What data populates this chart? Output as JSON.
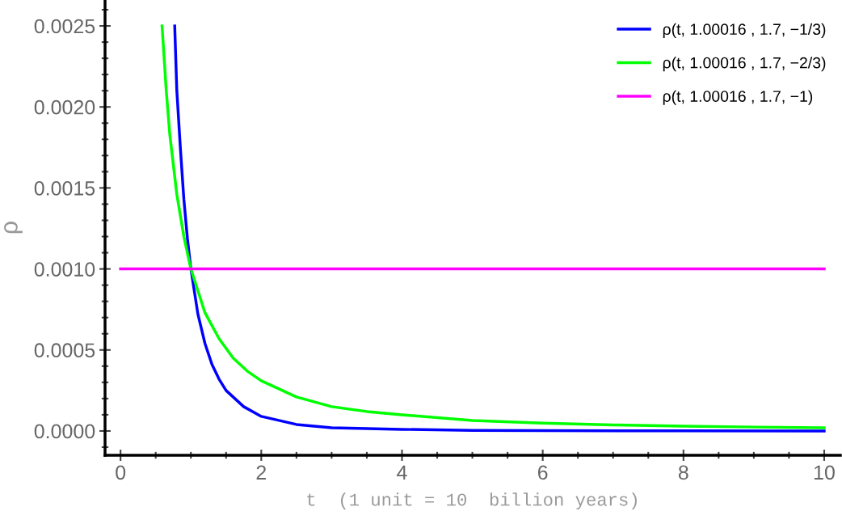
{
  "chart_data": {
    "type": "line",
    "xlabel": "t  (1 unit = 10  billion years)",
    "ylabel": "ρ",
    "series": [
      {
        "name": "ρ(t, 1.00016 , 1.7, −1/3)",
        "color": "#0000ff",
        "x": [
          0.77,
          0.8,
          0.85,
          0.9,
          0.95,
          1,
          1.1,
          1.2,
          1.3,
          1.4,
          1.5,
          1.75,
          2,
          2.5,
          3,
          4,
          5,
          6,
          8,
          10
        ],
        "values": [
          0.0025,
          0.0021,
          0.00175,
          0.00143,
          0.00119,
          0.001,
          0.00072,
          0.00054,
          0.00041,
          0.00032,
          0.00025,
          0.00015,
          9e-05,
          4e-05,
          2e-05,
          1e-05,
          4e-06,
          2e-06,
          1e-06,
          0
        ]
      },
      {
        "name": "ρ(t, 1.00016 , 1.7, −2/3)",
        "color": "#00ff00",
        "x": [
          0.59,
          0.65,
          0.7,
          0.8,
          0.9,
          1,
          1.2,
          1.4,
          1.6,
          1.8,
          2,
          2.5,
          3,
          3.5,
          4,
          5,
          6,
          7,
          8,
          9,
          10
        ],
        "values": [
          0.0025,
          0.0021,
          0.00183,
          0.00146,
          0.0012,
          0.001,
          0.00073,
          0.00057,
          0.00045,
          0.00037,
          0.00031,
          0.00021,
          0.00015,
          0.00012,
          0.0001,
          6.5e-05,
          4.8e-05,
          3.7e-05,
          3e-05,
          2.4e-05,
          2e-05
        ]
      },
      {
        "name": "ρ(t, 1.00016 , 1.7, −1)",
        "color": "#ff00ff",
        "x": [
          0,
          10
        ],
        "values": [
          0.001,
          0.001
        ]
      }
    ],
    "xlim": [
      -0.22,
      10.23
    ],
    "ylim": [
      -0.00015,
      0.00266
    ],
    "xticks": [
      0,
      {
        "value": 0.5,
        "label": null
      },
      {
        "value": 1,
        "label": null
      },
      {
        "value": 1.5,
        "label": null
      },
      2,
      {
        "value": 2.5,
        "label": null
      },
      {
        "value": 3,
        "label": null
      },
      {
        "value": 3.5,
        "label": null
      },
      4,
      {
        "value": 4.5,
        "label": null
      },
      {
        "value": 5,
        "label": null
      },
      {
        "value": 5.5,
        "label": null
      },
      6,
      {
        "value": 6.5,
        "label": null
      },
      {
        "value": 7,
        "label": null
      },
      {
        "value": 7.5,
        "label": null
      },
      8,
      {
        "value": 8.5,
        "label": null
      },
      {
        "value": 9,
        "label": null
      },
      {
        "value": 9.5,
        "label": null
      },
      10
    ],
    "yticks": [
      {
        "value": -0.0001,
        "label": null
      },
      {
        "value": 0,
        "label": "0.0000"
      },
      {
        "value": 0.0001,
        "label": null
      },
      {
        "value": 0.0002,
        "label": null
      },
      {
        "value": 0.0003,
        "label": null
      },
      {
        "value": 0.0004,
        "label": null
      },
      {
        "value": 0.0005,
        "label": "0.0005"
      },
      {
        "value": 0.0006,
        "label": null
      },
      {
        "value": 0.0007,
        "label": null
      },
      {
        "value": 0.0008,
        "label": null
      },
      {
        "value": 0.0009,
        "label": null
      },
      {
        "value": 0.001,
        "label": "0.0010"
      },
      {
        "value": 0.0011,
        "label": null
      },
      {
        "value": 0.0012,
        "label": null
      },
      {
        "value": 0.0013,
        "label": null
      },
      {
        "value": 0.0014,
        "label": null
      },
      {
        "value": 0.0015,
        "label": "0.0015"
      },
      {
        "value": 0.0016,
        "label": null
      },
      {
        "value": 0.0017,
        "label": null
      },
      {
        "value": 0.0018,
        "label": null
      },
      {
        "value": 0.0019,
        "label": null
      },
      {
        "value": 0.002,
        "label": "0.0020"
      },
      {
        "value": 0.0021,
        "label": null
      },
      {
        "value": 0.0022,
        "label": null
      },
      {
        "value": 0.0023,
        "label": null
      },
      {
        "value": 0.0024,
        "label": null
      },
      {
        "value": 0.0025,
        "label": "0.0025"
      },
      {
        "value": 0.0026,
        "label": null
      }
    ],
    "grid": false,
    "legend": "top right",
    "marker": "none",
    "line_style": "solid"
  }
}
